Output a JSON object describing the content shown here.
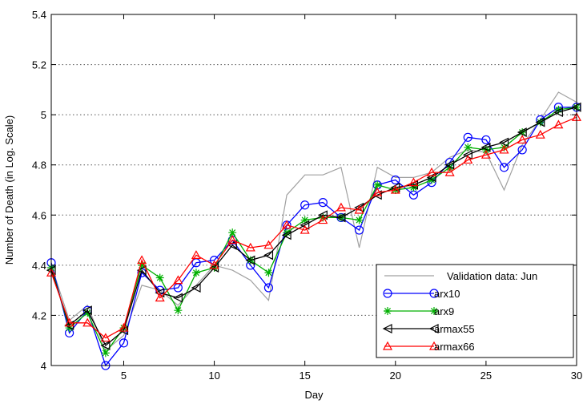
{
  "chart_data": {
    "type": "line",
    "title": "",
    "xlabel": "Day",
    "ylabel": "Number of Death (in Log. Scale)",
    "xlim": [
      1,
      30
    ],
    "ylim": [
      4,
      5.4
    ],
    "xticks": [
      5,
      10,
      15,
      20,
      25,
      30
    ],
    "yticks": [
      4,
      4.2,
      4.4,
      4.6,
      4.8,
      5,
      5.2,
      5.4
    ],
    "grid": "horizontal dotted",
    "legend_position": "bottom-right",
    "series": [
      {
        "name": "Validation data: Jun",
        "color": "#a0a0a0",
        "marker": "none",
        "x": [
          1,
          2,
          3,
          4,
          5,
          6,
          7,
          8,
          9,
          10,
          11,
          12,
          13,
          14,
          15,
          16,
          17,
          18,
          19,
          20,
          21,
          22,
          23,
          24,
          25,
          26,
          27,
          28,
          29,
          30
        ],
        "y": [
          4.4,
          4.18,
          4.24,
          4.06,
          4.12,
          4.32,
          4.3,
          4.24,
          4.32,
          4.4,
          4.38,
          4.34,
          4.26,
          4.68,
          4.76,
          4.76,
          4.79,
          4.47,
          4.79,
          4.75,
          4.75,
          4.77,
          4.83,
          4.86,
          4.85,
          4.7,
          4.88,
          4.98,
          5.09,
          5.05
        ]
      },
      {
        "name": "arx10",
        "color": "#0000ff",
        "marker": "circle",
        "x": [
          1,
          2,
          3,
          4,
          5,
          6,
          7,
          8,
          9,
          10,
          11,
          12,
          13,
          14,
          15,
          16,
          17,
          18,
          19,
          20,
          21,
          22,
          23,
          24,
          25,
          26,
          27,
          28,
          29,
          30
        ],
        "y": [
          4.41,
          4.13,
          4.22,
          4.0,
          4.09,
          4.37,
          4.3,
          4.31,
          4.41,
          4.42,
          4.5,
          4.4,
          4.31,
          4.56,
          4.64,
          4.65,
          4.59,
          4.54,
          4.72,
          4.74,
          4.68,
          4.73,
          4.81,
          4.91,
          4.9,
          4.79,
          4.86,
          4.98,
          5.03,
          5.03
        ]
      },
      {
        "name": "arx9",
        "color": "#00b000",
        "marker": "star",
        "x": [
          1,
          2,
          3,
          4,
          5,
          6,
          7,
          8,
          9,
          10,
          11,
          12,
          13,
          14,
          15,
          16,
          17,
          18,
          19,
          20,
          21,
          22,
          23,
          24,
          25,
          26,
          27,
          28,
          29,
          30
        ],
        "y": [
          4.39,
          4.15,
          4.21,
          4.05,
          4.15,
          4.4,
          4.35,
          4.22,
          4.37,
          4.39,
          4.53,
          4.42,
          4.37,
          4.53,
          4.58,
          4.59,
          4.59,
          4.58,
          4.72,
          4.7,
          4.71,
          4.74,
          4.79,
          4.87,
          4.86,
          4.87,
          4.93,
          4.97,
          5.02,
          5.03
        ]
      },
      {
        "name": "armax55",
        "color": "#000000",
        "marker": "triangle-left",
        "x": [
          1,
          2,
          3,
          4,
          5,
          6,
          7,
          8,
          9,
          10,
          11,
          12,
          13,
          14,
          15,
          16,
          17,
          18,
          19,
          20,
          21,
          22,
          23,
          24,
          25,
          26,
          27,
          28,
          29,
          30
        ],
        "y": [
          4.38,
          4.16,
          4.22,
          4.08,
          4.14,
          4.38,
          4.29,
          4.27,
          4.31,
          4.39,
          4.48,
          4.42,
          4.44,
          4.52,
          4.56,
          4.6,
          4.59,
          4.63,
          4.68,
          4.71,
          4.72,
          4.75,
          4.8,
          4.84,
          4.87,
          4.89,
          4.93,
          4.97,
          5.01,
          5.03
        ]
      },
      {
        "name": "armax66",
        "color": "#ff0000",
        "marker": "triangle-up",
        "x": [
          1,
          2,
          3,
          4,
          5,
          6,
          7,
          8,
          9,
          10,
          11,
          12,
          13,
          14,
          15,
          16,
          17,
          18,
          19,
          20,
          21,
          22,
          23,
          24,
          25,
          26,
          27,
          28,
          29,
          30
        ],
        "y": [
          4.37,
          4.17,
          4.17,
          4.11,
          4.15,
          4.42,
          4.27,
          4.34,
          4.44,
          4.4,
          4.5,
          4.47,
          4.48,
          4.56,
          4.54,
          4.58,
          4.63,
          4.62,
          4.69,
          4.7,
          4.73,
          4.77,
          4.77,
          4.82,
          4.84,
          4.86,
          4.9,
          4.92,
          4.96,
          4.99
        ]
      }
    ]
  }
}
